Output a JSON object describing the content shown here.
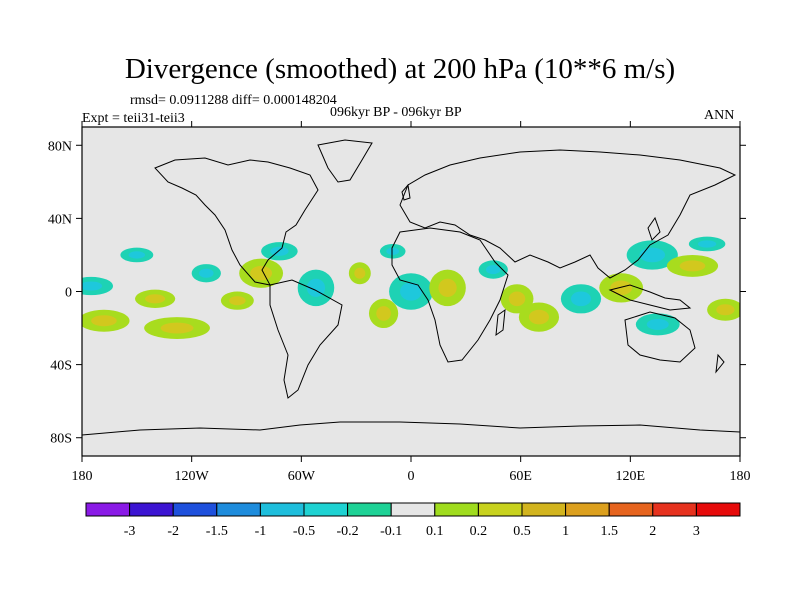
{
  "title": "Divergence (smoothed) at 200 hPa (10**6 m/s)",
  "stats": "rmsd= 0.0911288 diff= 0.000148204",
  "expt": "Expt = teii31-teii3",
  "period": "096kyr BP - 096kyr BP",
  "season": "ANN",
  "lat_ticks": [
    {
      "lat": 80,
      "label": "80N"
    },
    {
      "lat": 40,
      "label": "40N"
    },
    {
      "lat": 0,
      "label": "0"
    },
    {
      "lat": -40,
      "label": "40S"
    },
    {
      "lat": -80,
      "label": "80S"
    }
  ],
  "lon_ticks": [
    {
      "lon": -180,
      "label": "180"
    },
    {
      "lon": -120,
      "label": "120W"
    },
    {
      "lon": -60,
      "label": "60W"
    },
    {
      "lon": 0,
      "label": "0"
    },
    {
      "lon": 60,
      "label": "60E"
    },
    {
      "lon": 120,
      "label": "120E"
    },
    {
      "lon": 180,
      "label": "180"
    }
  ],
  "colorbar": {
    "colors": [
      "#8a1ae6",
      "#3c14d2",
      "#1e50dc",
      "#1e8cdc",
      "#1ebedc",
      "#1ed2d2",
      "#1ed296",
      "#e6e6e6",
      "#a0dc1e",
      "#c8d21e",
      "#d2b41e",
      "#dca01e",
      "#e6641e",
      "#e6321e",
      "#e60a0a"
    ],
    "labels": [
      "-3",
      "-2",
      "-1.5",
      "-1",
      "-0.5",
      "-0.2",
      "-0.1",
      "0.1",
      "0.2",
      "0.5",
      "1",
      "1.5",
      "2",
      "3"
    ]
  },
  "colors": {
    "ocean": "#e6e6e6",
    "pos_weak": "#a8dc1e",
    "pos_mid": "#d2c81e",
    "neg_weak": "#1ed2b4",
    "neg_mid": "#1ec8dc"
  },
  "field_blobs": [
    {
      "lon": -175,
      "lat": 3,
      "rlon": 12,
      "rlat": 5,
      "sign": "neg"
    },
    {
      "lon": -168,
      "lat": -16,
      "rlon": 14,
      "rlat": 6,
      "sign": "pos"
    },
    {
      "lon": -150,
      "lat": 20,
      "rlon": 9,
      "rlat": 4,
      "sign": "neg"
    },
    {
      "lon": -140,
      "lat": -4,
      "rlon": 11,
      "rlat": 5,
      "sign": "pos"
    },
    {
      "lon": -128,
      "lat": -20,
      "rlon": 18,
      "rlat": 6,
      "sign": "pos"
    },
    {
      "lon": -112,
      "lat": 10,
      "rlon": 8,
      "rlat": 5,
      "sign": "neg"
    },
    {
      "lon": -95,
      "lat": -5,
      "rlon": 9,
      "rlat": 5,
      "sign": "pos"
    },
    {
      "lon": -82,
      "lat": 10,
      "rlon": 12,
      "rlat": 8,
      "sign": "pos"
    },
    {
      "lon": -72,
      "lat": 22,
      "rlon": 10,
      "rlat": 5,
      "sign": "neg"
    },
    {
      "lon": -52,
      "lat": 2,
      "rlon": 10,
      "rlat": 10,
      "sign": "neg"
    },
    {
      "lon": -28,
      "lat": 10,
      "rlon": 6,
      "rlat": 6,
      "sign": "pos"
    },
    {
      "lon": -15,
      "lat": -12,
      "rlon": 8,
      "rlat": 8,
      "sign": "pos"
    },
    {
      "lon": 0,
      "lat": 0,
      "rlon": 12,
      "rlat": 10,
      "sign": "neg"
    },
    {
      "lon": 20,
      "lat": 2,
      "rlon": 10,
      "rlat": 10,
      "sign": "pos"
    },
    {
      "lon": 45,
      "lat": 12,
      "rlon": 8,
      "rlat": 5,
      "sign": "neg"
    },
    {
      "lon": 58,
      "lat": -4,
      "rlon": 9,
      "rlat": 8,
      "sign": "pos"
    },
    {
      "lon": 70,
      "lat": -14,
      "rlon": 11,
      "rlat": 8,
      "sign": "pos"
    },
    {
      "lon": 93,
      "lat": -4,
      "rlon": 11,
      "rlat": 8,
      "sign": "neg"
    },
    {
      "lon": 115,
      "lat": 2,
      "rlon": 12,
      "rlat": 8,
      "sign": "pos"
    },
    {
      "lon": 132,
      "lat": 20,
      "rlon": 14,
      "rlat": 8,
      "sign": "neg"
    },
    {
      "lon": 154,
      "lat": 14,
      "rlon": 14,
      "rlat": 6,
      "sign": "pos"
    },
    {
      "lon": 162,
      "lat": 26,
      "rlon": 10,
      "rlat": 4,
      "sign": "neg"
    },
    {
      "lon": 172,
      "lat": -10,
      "rlon": 10,
      "rlat": 6,
      "sign": "pos"
    },
    {
      "lon": 135,
      "lat": -18,
      "rlon": 12,
      "rlat": 6,
      "sign": "neg"
    },
    {
      "lon": -10,
      "lat": 22,
      "rlon": 7,
      "rlat": 4,
      "sign": "neg"
    }
  ]
}
